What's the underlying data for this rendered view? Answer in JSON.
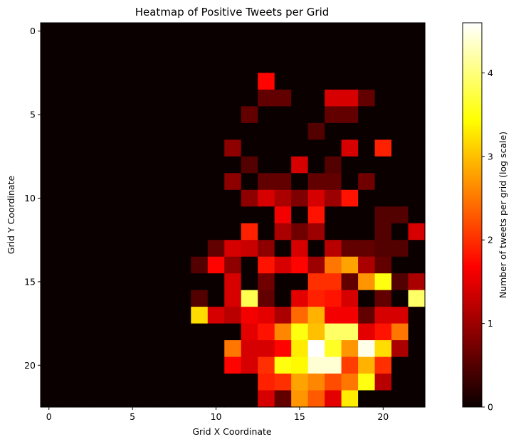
{
  "chart_data": {
    "type": "heatmap",
    "title": "Heatmap of Positive Tweets per Grid",
    "xlabel": "Grid X Coordinate",
    "ylabel": "Grid Y Coordinate",
    "colorbar_label": "Number of tweets per grid (log scale)",
    "colormap": "hot",
    "xlim": [
      -0.5,
      22.5
    ],
    "ylim": [
      22.5,
      -0.5
    ],
    "vmin": 0,
    "vmax": 4.6,
    "x_ticks": [
      0,
      5,
      10,
      15,
      20
    ],
    "y_ticks": [
      0,
      5,
      10,
      15,
      20
    ],
    "colorbar_ticks": [
      0,
      1,
      2,
      3,
      4
    ],
    "rows": 23,
    "cols": 23,
    "values": [
      [
        0,
        0,
        0,
        0,
        0,
        0,
        0,
        0,
        0,
        0,
        0,
        0,
        0,
        0,
        0,
        0,
        0,
        0,
        0,
        0,
        0,
        0,
        0
      ],
      [
        0,
        0,
        0,
        0,
        0,
        0,
        0,
        0,
        0,
        0,
        0,
        0,
        0,
        0,
        0,
        0,
        0,
        0,
        0,
        0,
        0,
        0,
        0
      ],
      [
        0,
        0,
        0,
        0,
        0,
        0,
        0,
        0,
        0,
        0,
        0,
        0,
        0,
        0,
        0,
        0,
        0,
        0,
        0,
        0,
        0,
        0,
        0
      ],
      [
        0,
        0,
        0,
        0,
        0,
        0,
        0,
        0,
        0,
        0,
        0,
        0,
        0,
        1.7,
        0,
        0,
        0,
        0,
        0,
        0,
        0,
        0,
        0
      ],
      [
        0,
        0,
        0,
        0,
        0,
        0,
        0,
        0,
        0,
        0,
        0,
        0,
        0,
        0.6,
        0.6,
        0,
        0,
        1.4,
        1.4,
        0.6,
        0,
        0,
        0
      ],
      [
        0,
        0,
        0,
        0,
        0,
        0,
        0,
        0,
        0,
        0,
        0,
        0,
        0.6,
        0,
        0,
        0,
        0,
        0.6,
        0.6,
        0,
        0,
        0,
        0
      ],
      [
        0,
        0,
        0,
        0,
        0,
        0,
        0,
        0,
        0,
        0,
        0,
        0,
        0,
        0,
        0,
        0,
        0.5,
        0,
        0,
        0,
        0,
        0,
        0
      ],
      [
        0,
        0,
        0,
        0,
        0,
        0,
        0,
        0,
        0,
        0,
        0,
        0.9,
        0,
        0,
        0,
        0,
        0,
        0,
        1.4,
        0,
        1.9,
        0,
        0
      ],
      [
        0,
        0,
        0,
        0,
        0,
        0,
        0,
        0,
        0,
        0,
        0,
        0,
        0.5,
        0,
        0,
        1.4,
        0,
        0.5,
        0,
        0,
        0,
        0,
        0
      ],
      [
        0,
        0,
        0,
        0,
        0,
        0,
        0,
        0,
        0,
        0,
        0,
        0.9,
        0,
        0.6,
        0.6,
        0,
        0.6,
        0.6,
        0,
        0.7,
        0,
        0,
        0
      ],
      [
        0,
        0,
        0,
        0,
        0,
        0,
        0,
        0,
        0,
        0,
        0,
        0,
        0.9,
        1.4,
        1.1,
        0.8,
        1.4,
        1.0,
        1.8,
        0,
        0,
        0,
        0
      ],
      [
        0,
        0,
        0,
        0,
        0,
        0,
        0,
        0,
        0,
        0,
        0,
        0,
        0,
        0,
        1.6,
        0,
        1.8,
        0,
        0,
        0,
        0.5,
        0.5,
        0
      ],
      [
        0,
        0,
        0,
        0,
        0,
        0,
        0,
        0,
        0,
        0,
        0,
        0,
        1.9,
        0,
        1.1,
        0.7,
        1.0,
        0,
        0,
        0,
        0.5,
        0,
        1.4
      ],
      [
        0,
        0,
        0,
        0,
        0,
        0,
        0,
        0,
        0,
        0,
        0.6,
        1.4,
        1.3,
        0.9,
        0,
        1.4,
        0,
        1.2,
        0.6,
        0.6,
        0.5,
        0.5,
        0
      ],
      [
        0,
        0,
        0,
        0,
        0,
        0,
        0,
        0,
        0,
        0.5,
        1.7,
        0.9,
        0,
        1.8,
        1.4,
        1.7,
        1.0,
        2.5,
        2.8,
        1.1,
        0.6,
        0,
        0
      ],
      [
        0,
        0,
        0,
        0,
        0,
        0,
        0,
        0,
        0,
        0,
        0,
        1.4,
        0,
        0.7,
        0,
        0,
        2.0,
        2.0,
        0.6,
        2.7,
        3.5,
        0.5,
        1.1
      ],
      [
        0,
        0,
        0,
        0,
        0,
        0,
        0,
        0,
        0,
        0.5,
        0,
        1.4,
        3.8,
        0.6,
        0,
        1.5,
        1.9,
        1.8,
        1.4,
        0,
        0.6,
        0,
        3.9
      ],
      [
        0,
        0,
        0,
        0,
        0,
        0,
        0,
        0,
        0,
        3.2,
        1.4,
        1.2,
        1.6,
        1.5,
        1.1,
        2.4,
        2.9,
        1.6,
        1.6,
        0.6,
        1.4,
        1.4,
        0
      ],
      [
        0,
        0,
        0,
        0,
        0,
        0,
        0,
        0,
        0,
        0,
        0,
        0,
        1.5,
        1.8,
        2.6,
        3.5,
        3.0,
        3.9,
        3.9,
        1.5,
        1.8,
        2.5,
        0
      ],
      [
        0,
        0,
        0,
        0,
        0,
        0,
        0,
        0,
        0,
        0,
        0,
        2.5,
        1.4,
        1.4,
        1.7,
        3.3,
        4.6,
        3.6,
        2.7,
        4.5,
        3.2,
        1.1,
        0
      ],
      [
        0,
        0,
        0,
        0,
        0,
        0,
        0,
        0,
        0,
        0,
        0,
        1.7,
        1.4,
        2.0,
        3.5,
        3.4,
        4.4,
        4.4,
        2.1,
        2.9,
        2.0,
        0,
        0
      ],
      [
        0,
        0,
        0,
        0,
        0,
        0,
        0,
        0,
        0,
        0,
        0,
        0,
        0,
        1.9,
        2.0,
        2.8,
        2.6,
        2.2,
        2.5,
        3.5,
        1.2,
        0,
        0
      ],
      [
        0,
        0,
        0,
        0,
        0,
        0,
        0,
        0,
        0,
        0,
        0,
        0,
        0,
        1.4,
        0.6,
        2.7,
        2.3,
        1.5,
        3.3,
        0,
        0,
        0,
        0
      ]
    ]
  }
}
